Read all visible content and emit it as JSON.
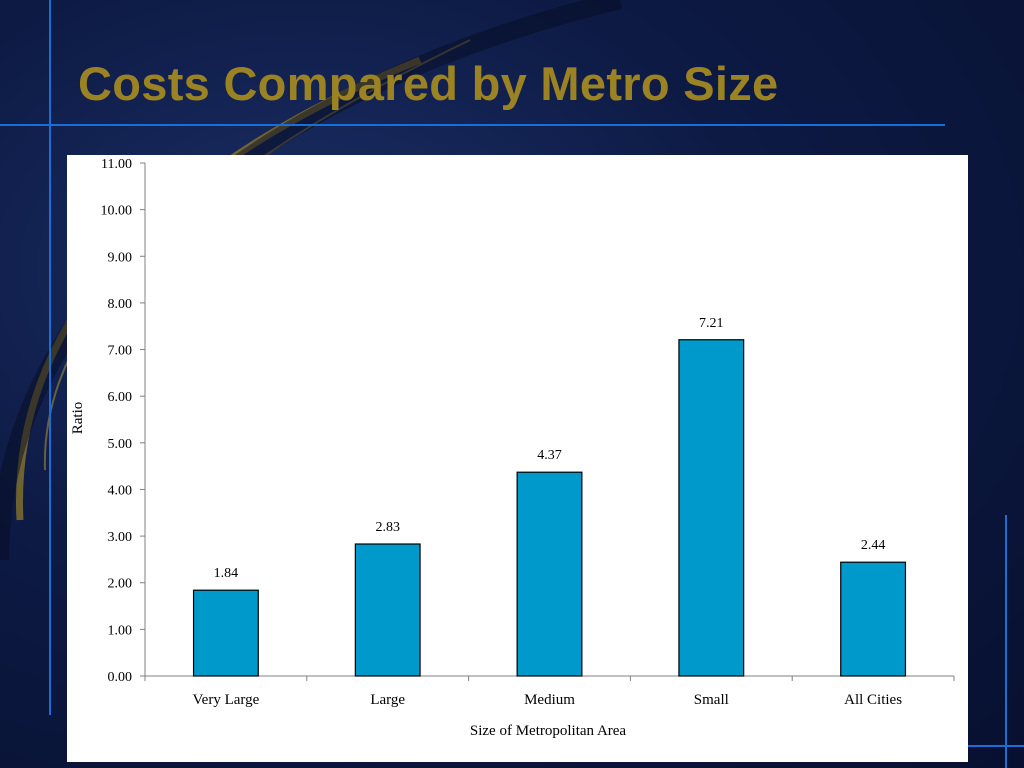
{
  "slide": {
    "title": "Costs Compared by Metro Size"
  },
  "colors": {
    "background": "#0d1a44",
    "title": "#9b8323",
    "bar_fill": "#0099cc",
    "accent_lines": "#1a6fd6"
  },
  "chart_data": {
    "type": "bar",
    "categories": [
      "Very Large",
      "Large",
      "Medium",
      "Small",
      "All Cities"
    ],
    "values": [
      1.84,
      2.83,
      4.37,
      7.21,
      2.44
    ],
    "data_labels": [
      "1.84",
      "2.83",
      "4.37",
      "7.21",
      "2.44"
    ],
    "yticks": [
      "0.00",
      "1.00",
      "2.00",
      "3.00",
      "4.00",
      "5.00",
      "6.00",
      "7.00",
      "8.00",
      "9.00",
      "10.00",
      "11.00"
    ],
    "ylim": [
      0,
      11
    ],
    "xlabel": "Size of Metropolitan Area",
    "ylabel": "Ratio",
    "grid": false,
    "legend": "none"
  }
}
